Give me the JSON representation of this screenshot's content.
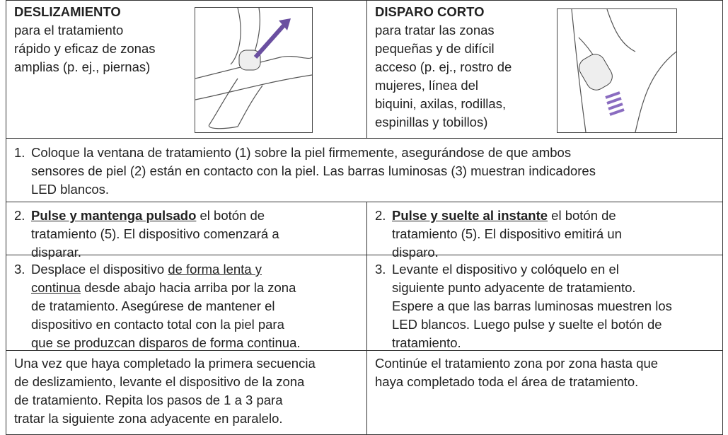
{
  "header": [
    {
      "title": "DESLIZAMIENTO",
      "lines": [
        "para el tratamiento",
        "rápido y eficaz de zonas",
        "amplias (p. ej., piernas)"
      ]
    },
    {
      "title": "DISPARO CORTO",
      "lines": [
        "para tratar las zonas",
        "pequeñas y de difícil",
        "acceso (p. ej., rostro de",
        "mujeres, línea del",
        "biquini, axilas, rodillas,",
        "espinillas y tobillos)"
      ]
    }
  ],
  "step1": {
    "number": "1.",
    "lines": [
      [
        {
          "text": "Coloque la ventana de tratamiento (1) sobre la piel firmemente, asegurándose de que ambos"
        }
      ],
      [
        {
          "text": "sensores de piel (2) están en contacto con la piel. Las barras luminosas (3) muestran indicadores"
        }
      ],
      [
        {
          "text": "LED blancos."
        }
      ]
    ]
  },
  "steps": [
    [
      {
        "number": "2.",
        "lines": [
          [
            {
              "text": "Pulse y mantenga pulsado",
              "bold": true,
              "underline": true
            },
            {
              "text": " el botón de"
            }
          ],
          [
            {
              "text": "tratamiento (5). El dispositivo comenzará a"
            }
          ],
          [
            {
              "text": "disparar."
            }
          ]
        ]
      },
      {
        "number": "2.",
        "lines": [
          [
            {
              "text": "Pulse y suelte al instante",
              "bold": true,
              "underline": true
            },
            {
              "text": " el botón de"
            }
          ],
          [
            {
              "text": "tratamiento (5). El dispositivo emitirá un"
            }
          ],
          [
            {
              "text": "disparo."
            }
          ]
        ]
      }
    ],
    [
      {
        "number": "3.",
        "lines": [
          [
            {
              "text": "Desplace el dispositivo "
            },
            {
              "text": "de forma lenta y",
              "underline": true
            }
          ],
          [
            {
              "text": "continua",
              "underline": true
            },
            {
              "text": " desde abajo hacia arriba por la zona"
            }
          ],
          [
            {
              "text": "de tratamiento. Asegúrese de mantener el"
            }
          ],
          [
            {
              "text": "dispositivo en contacto total con la piel para"
            }
          ],
          [
            {
              "text": "que se produzcan disparos de forma continua."
            }
          ]
        ]
      },
      {
        "number": "3.",
        "lines": [
          [
            {
              "text": "Levante el dispositivo y colóquelo en el"
            }
          ],
          [
            {
              "text": "siguiente punto adyacente de tratamiento."
            }
          ],
          [
            {
              "text": "Espere a que las barras luminosas muestren los"
            }
          ],
          [
            {
              "text": "LED blancos. Luego pulse y suelte el botón de"
            }
          ],
          [
            {
              "text": "tratamiento."
            }
          ]
        ]
      }
    ]
  ],
  "footer": [
    {
      "lines": [
        "Una vez que haya completado la primera secuencia",
        "de deslizamiento, levante el dispositivo de la zona",
        "de tratamiento. Repita los pasos de 1 a 3 para",
        "tratar la siguiente zona adyacente en paralelo."
      ]
    },
    {
      "lines": [
        "Continúe el tratamiento zona por zona hasta que",
        "haya completado toda el área de tratamiento."
      ]
    }
  ]
}
